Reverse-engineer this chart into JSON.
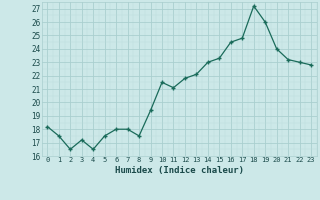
{
  "x": [
    0,
    1,
    2,
    3,
    4,
    5,
    6,
    7,
    8,
    9,
    10,
    11,
    12,
    13,
    14,
    15,
    16,
    17,
    18,
    19,
    20,
    21,
    22,
    23
  ],
  "y": [
    18.2,
    17.5,
    16.5,
    17.2,
    16.5,
    17.5,
    18.0,
    18.0,
    17.5,
    19.4,
    21.5,
    21.1,
    21.8,
    22.1,
    23.0,
    23.3,
    24.5,
    24.8,
    27.2,
    26.0,
    24.0,
    23.2,
    23.0,
    22.8
  ],
  "xlabel": "Humidex (Indice chaleur)",
  "ylim": [
    16,
    27.5
  ],
  "xlim": [
    -0.5,
    23.5
  ],
  "yticks": [
    16,
    17,
    18,
    19,
    20,
    21,
    22,
    23,
    24,
    25,
    26,
    27
  ],
  "xticks": [
    0,
    1,
    2,
    3,
    4,
    5,
    6,
    7,
    8,
    9,
    10,
    11,
    12,
    13,
    14,
    15,
    16,
    17,
    18,
    19,
    20,
    21,
    22,
    23
  ],
  "line_color": "#1a6b5a",
  "marker_color": "#1a6b5a",
  "bg_color": "#cce8e8",
  "grid_major_color": "#aacfcf",
  "grid_minor_color": "#bbdcdc"
}
